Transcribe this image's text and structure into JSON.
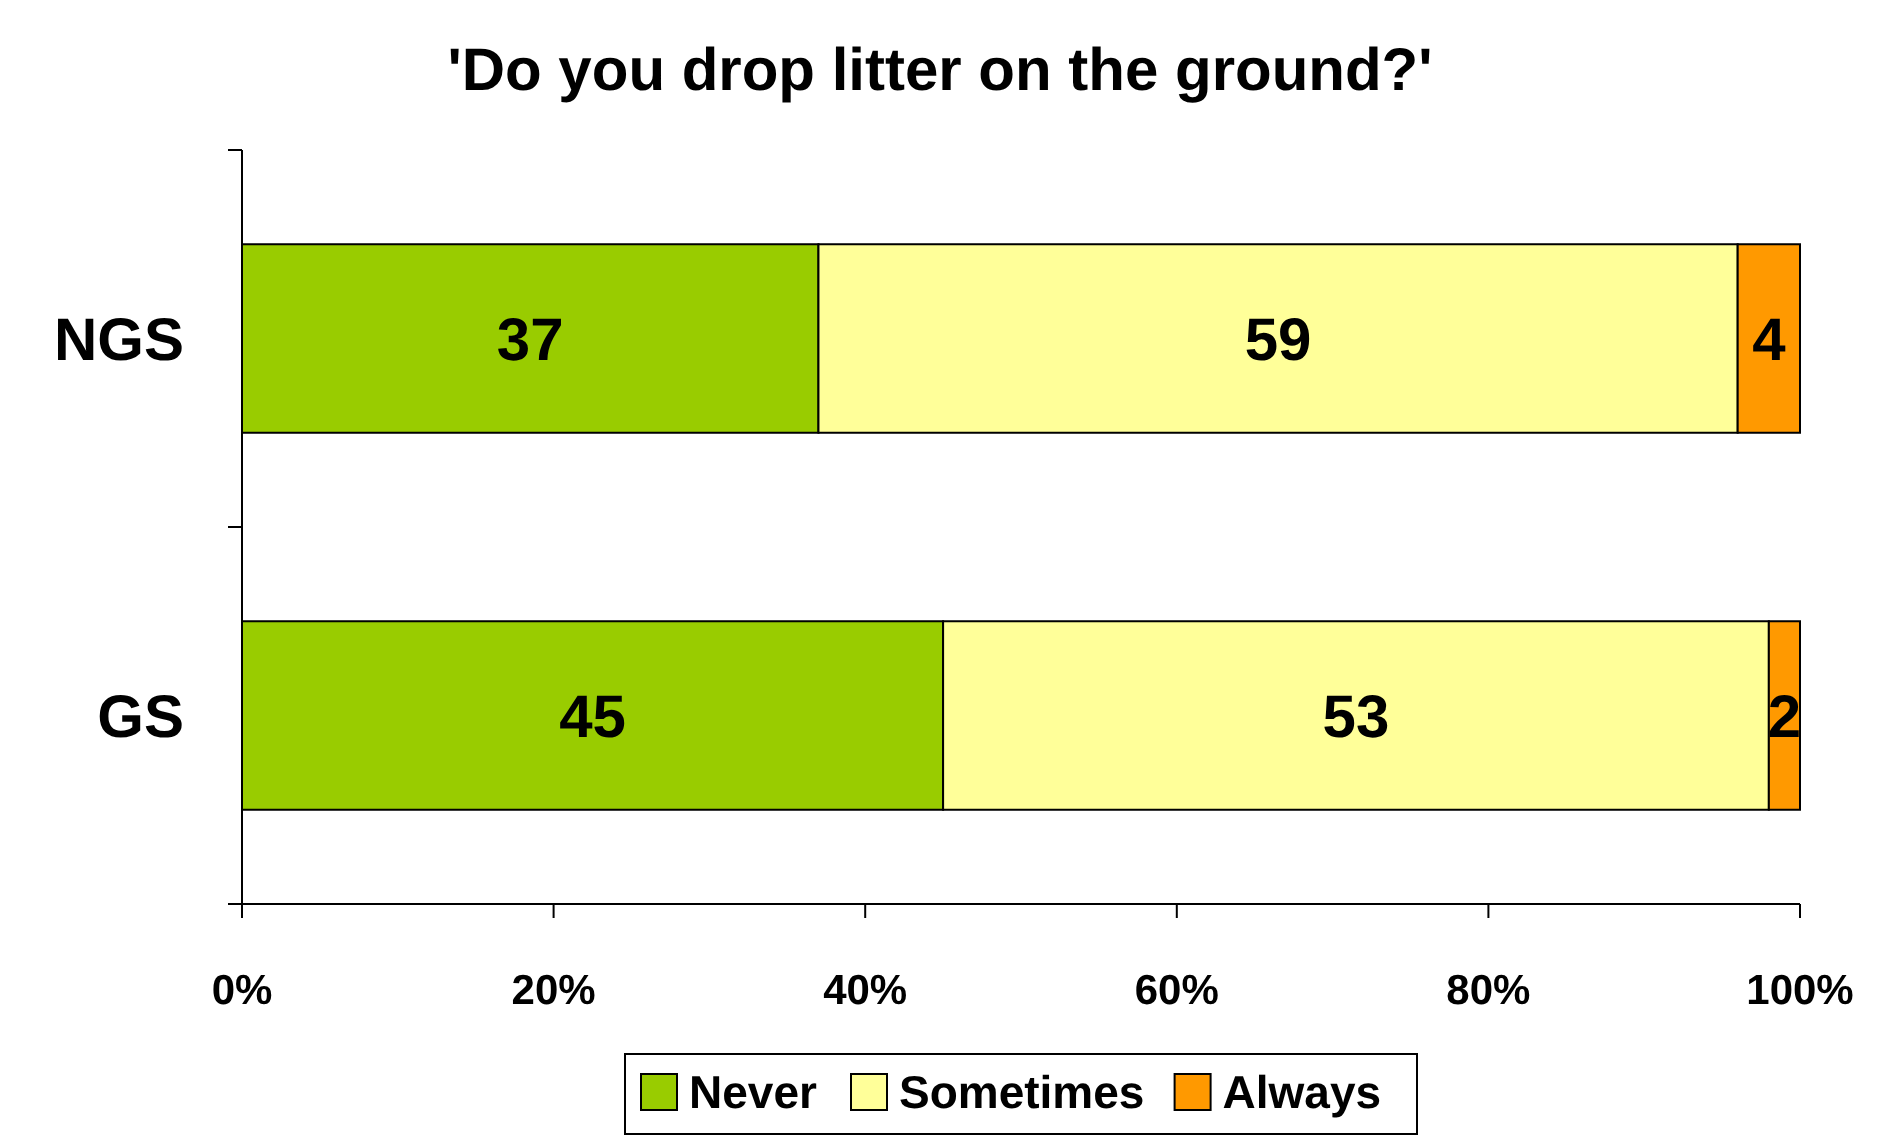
{
  "chart_data": {
    "type": "bar",
    "orientation": "horizontal",
    "stacked": true,
    "title": "'Do you drop litter on the ground?'",
    "categories": [
      "NGS",
      "GS"
    ],
    "series": [
      {
        "name": "Never",
        "color": "#99cc00",
        "values": [
          37,
          45
        ]
      },
      {
        "name": "Sometimes",
        "color": "#ffff99",
        "values": [
          59,
          53
        ]
      },
      {
        "name": "Always",
        "color": "#ff9900",
        "values": [
          4,
          2
        ]
      }
    ],
    "xlim": [
      0,
      100
    ],
    "xticks": [
      {
        "value": 0,
        "label": "0%"
      },
      {
        "value": 20,
        "label": "20%"
      },
      {
        "value": 40,
        "label": "40%"
      },
      {
        "value": 60,
        "label": "60%"
      },
      {
        "value": 80,
        "label": "80%"
      },
      {
        "value": 100,
        "label": "100%"
      }
    ],
    "data_labels": true,
    "legend": "bottom",
    "grid": false
  }
}
